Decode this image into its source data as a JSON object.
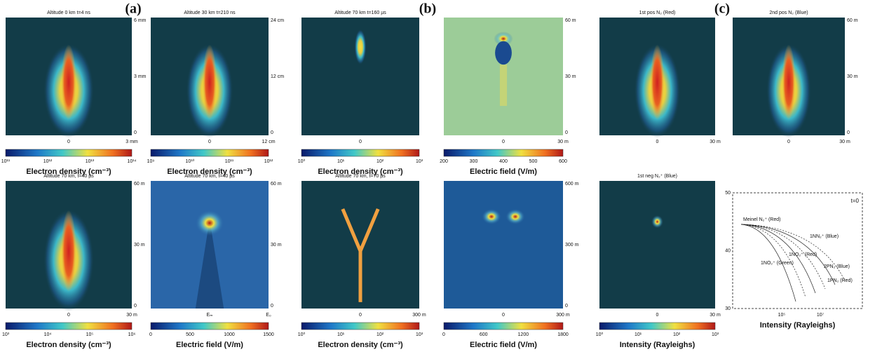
{
  "figure_labels": [
    "(a)",
    "(b)",
    "(c)"
  ],
  "panels": [
    {
      "title": "Altitude 0 km  t=4 ns",
      "yticks": [
        "6 mm",
        "3 mm",
        "0"
      ],
      "xticks": [
        "0",
        "3 mm"
      ],
      "colorbar": {
        "ticks": [
          "10¹¹",
          "10¹²",
          "10¹³",
          "10¹⁴"
        ],
        "label": "Electron density (cm⁻³)"
      }
    },
    {
      "title": "Altitude 30 km  t=210 ns",
      "yticks": [
        "24 cm",
        "12 cm",
        "0"
      ],
      "xticks": [
        "0",
        "12 cm"
      ],
      "colorbar": {
        "ticks": [
          "10⁹",
          "10¹⁰",
          "10¹¹",
          "10¹²"
        ],
        "label": "Electron density (cm⁻³)"
      }
    },
    {
      "title": "Altitude 70 km, t=40 µs",
      "yticks": [
        "60 m",
        "30 m",
        "0"
      ],
      "xticks": [
        "0",
        "30 m"
      ],
      "colorbar": {
        "ticks": [
          "10³",
          "10⁴",
          "10⁵",
          "10⁶"
        ],
        "label": "Electron density (cm⁻³)"
      }
    },
    {
      "title": "Altitude 70 km, t=40 µs",
      "yticks": [
        "60 m",
        "30 m",
        "0"
      ],
      "xticks": [
        "Eₘ",
        "E₀"
      ],
      "colorbar": {
        "ticks": [
          "0",
          "500",
          "1000",
          "1500"
        ],
        "label": "Electric field (V/m)"
      }
    },
    {
      "title": "Altitude 70 km  t=160 µs",
      "yticks": [],
      "xticks": [
        "0"
      ],
      "colorbar": {
        "ticks": [
          "10⁰",
          "10¹",
          "10²",
          "10³"
        ],
        "label": "Electron density (cm⁻³)"
      }
    },
    {
      "title": "",
      "yticks": [
        "60 m",
        "30 m",
        "0"
      ],
      "xticks": [
        "0",
        "30 m"
      ],
      "colorbar": {
        "ticks": [
          "200",
          "300",
          "400",
          "500",
          "600"
        ],
        "label": "Electric field (V/m)"
      }
    },
    {
      "title": "Altitude 70 km, t=70 µs",
      "yticks": [],
      "xticks": [
        "0",
        "300 m"
      ],
      "colorbar": {
        "ticks": [
          "10⁰",
          "10¹",
          "10²",
          "10³"
        ],
        "label": "Electron density (cm⁻³)"
      }
    },
    {
      "title": "",
      "yticks": [
        "600 m",
        "300 m",
        "0"
      ],
      "xticks": [
        "0",
        "300 m"
      ],
      "colorbar": {
        "ticks": [
          "0",
          "600",
          "1200",
          "1800"
        ],
        "label": "Electric field (V/m)"
      }
    },
    {
      "title": "1st pos N₂ (Red)",
      "yticks": [],
      "xticks": [
        "0",
        "30 m"
      ],
      "colorbar": null
    },
    {
      "title": "2nd pos N₂ (Blue)",
      "yticks": [
        "60 m",
        "30 m",
        "0"
      ],
      "xticks": [
        "0",
        "30 m"
      ],
      "colorbar": null
    },
    {
      "title": "1st neg N₂⁺ (Blue)",
      "yticks": [],
      "xticks": [
        "0",
        "30 m"
      ],
      "colorbar": {
        "ticks": [
          "10⁰",
          "10¹",
          "10²",
          "10³"
        ],
        "label": "Intensity (Rayleighs)"
      }
    }
  ],
  "line_plot": {
    "yticks": [
      "50",
      "40",
      "30"
    ],
    "xticks": [
      "10⁵",
      "10⁷"
    ],
    "xlabel": "Intensity (Rayleighs)",
    "annotation": "t=0",
    "curves": [
      "Meinel N₂⁺ (Red)",
      "1NN₂⁺ (Blue)",
      "1NO₂⁺ (Red)",
      "1NO₂⁺ (Green)",
      "2PN₂ (Blue)",
      "1PN₂ (Red)"
    ]
  }
}
